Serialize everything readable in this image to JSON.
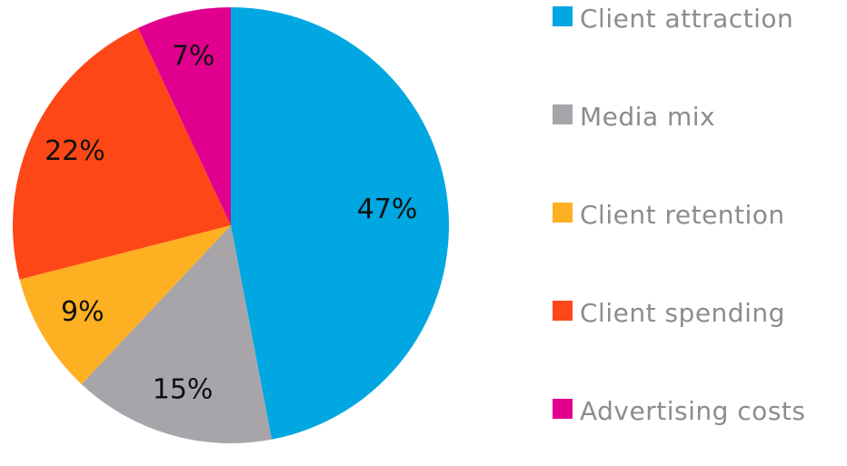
{
  "chart_data": {
    "type": "pie",
    "categories": [
      "Client attraction",
      "Media mix",
      "Client retention",
      "Client spending",
      "Advertising costs"
    ],
    "values": [
      47,
      15,
      9,
      22,
      7
    ],
    "value_labels": [
      "47%",
      "15%",
      "9%",
      "22%",
      "7%"
    ],
    "colors": [
      "#00a7e1",
      "#a7a5aa",
      "#fdb021",
      "#fd4716",
      "#e0008d"
    ],
    "legend": "right"
  }
}
